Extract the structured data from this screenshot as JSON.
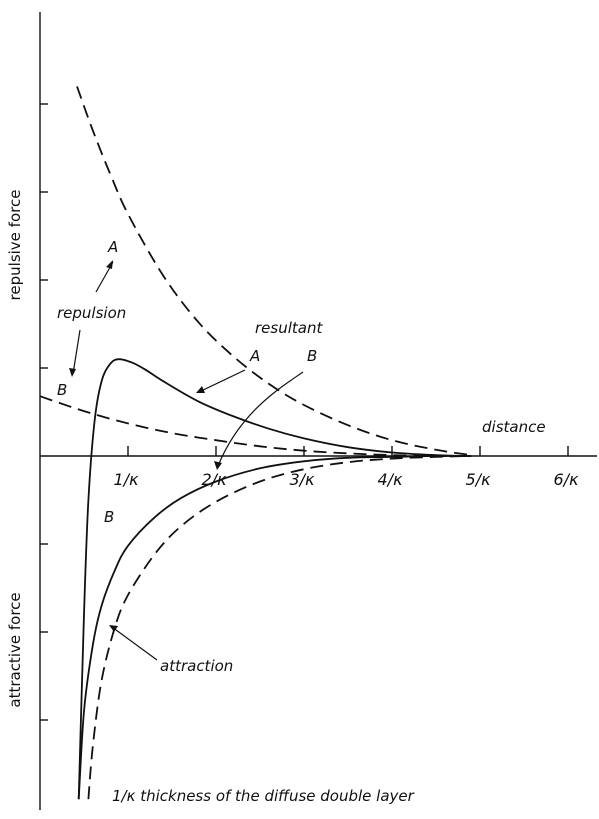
{
  "chart_data": {
    "type": "line",
    "y_axis": {
      "upper_label": "repulsive force",
      "lower_label": "attractive force"
    },
    "x_axis": {
      "label": "distance",
      "tick_labels": [
        "1/κ",
        "2/κ",
        "3/κ",
        "4/κ",
        "5/κ",
        "6/κ"
      ],
      "ticks": [
        1,
        2,
        3,
        4,
        5,
        6
      ]
    },
    "annotations": {
      "repulsion": "repulsion",
      "attraction": "attraction",
      "resultant": "resultant",
      "repulsion_A": "A",
      "repulsion_B": "B",
      "resultant_A": "A",
      "resultant_B": "B",
      "attraction_B": "B"
    },
    "footnote": "1/κ thickness of the diffuse double layer",
    "series": [
      {
        "key": "repulsion_A",
        "style": "dashed",
        "x": [
          0.42,
          0.6,
          0.8,
          1.0,
          1.4,
          1.8,
          2.2,
          2.6,
          3.0,
          3.5,
          4.0,
          4.5,
          4.9
        ],
        "y": [
          4.2,
          3.7,
          3.2,
          2.75,
          2.05,
          1.52,
          1.13,
          0.82,
          0.58,
          0.35,
          0.18,
          0.07,
          0.01
        ]
      },
      {
        "key": "repulsion_B",
        "style": "dashed",
        "x": [
          0.0,
          0.5,
          1.0,
          1.5,
          2.0,
          2.5,
          3.0,
          3.5,
          4.0,
          4.5,
          4.9
        ],
        "y": [
          0.68,
          0.51,
          0.37,
          0.26,
          0.18,
          0.11,
          0.06,
          0.03,
          0.01,
          0.0,
          0.0
        ]
      },
      {
        "key": "attraction",
        "style": "dashed",
        "x": [
          0.55,
          0.6,
          0.7,
          0.85,
          1.0,
          1.3,
          1.6,
          2.0,
          2.5,
          3.0,
          3.5,
          4.0,
          4.5,
          4.9
        ],
        "y": [
          -3.9,
          -3.3,
          -2.55,
          -1.95,
          -1.58,
          -1.12,
          -0.8,
          -0.52,
          -0.29,
          -0.15,
          -0.07,
          -0.03,
          -0.01,
          0.0
        ]
      },
      {
        "key": "resultant_A",
        "style": "solid",
        "x": [
          0.44,
          0.5,
          0.55,
          0.62,
          0.7,
          0.8,
          0.9,
          1.05,
          1.2,
          1.4,
          1.8,
          2.2,
          2.6,
          3.0,
          3.5,
          4.0,
          4.5,
          4.9
        ],
        "y": [
          -3.9,
          -1.8,
          -0.5,
          0.4,
          0.85,
          1.05,
          1.1,
          1.06,
          0.98,
          0.85,
          0.62,
          0.45,
          0.31,
          0.2,
          0.1,
          0.04,
          0.01,
          0.0
        ]
      },
      {
        "key": "resultant_B",
        "style": "solid",
        "x": [
          0.44,
          0.5,
          0.6,
          0.7,
          0.85,
          1.0,
          1.3,
          1.6,
          2.0,
          2.5,
          3.0,
          3.5,
          4.0,
          4.5,
          4.9
        ],
        "y": [
          -3.9,
          -2.9,
          -2.15,
          -1.7,
          -1.3,
          -1.02,
          -0.7,
          -0.48,
          -0.29,
          -0.14,
          -0.06,
          -0.02,
          -0.01,
          0.0,
          0.0
        ]
      }
    ]
  }
}
